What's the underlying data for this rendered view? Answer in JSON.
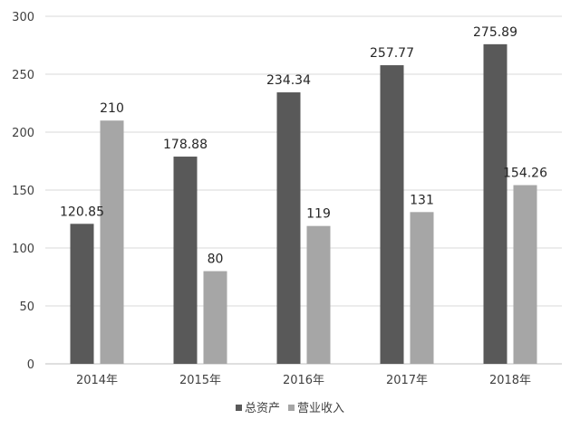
{
  "chart_data": {
    "type": "bar",
    "categories": [
      "2014年",
      "2015年",
      "2016年",
      "2017年",
      "2018年"
    ],
    "series": [
      {
        "name": "总资产",
        "values": [
          120.85,
          178.88,
          234.34,
          257.77,
          275.89
        ],
        "labels": [
          "120.85",
          "178.88",
          "234.34",
          "257.77",
          "275.89"
        ],
        "color": "#595959"
      },
      {
        "name": "营业收入",
        "values": [
          210,
          80,
          119,
          131,
          154.26
        ],
        "labels": [
          "210",
          "80",
          "119",
          "131",
          "154.26"
        ],
        "color": "#a6a6a6"
      }
    ],
    "yticks": [
      "0",
      "50",
      "100",
      "150",
      "200",
      "250",
      "300"
    ],
    "ylim": [
      0,
      300
    ],
    "grid": true,
    "legend_position": "bottom"
  }
}
